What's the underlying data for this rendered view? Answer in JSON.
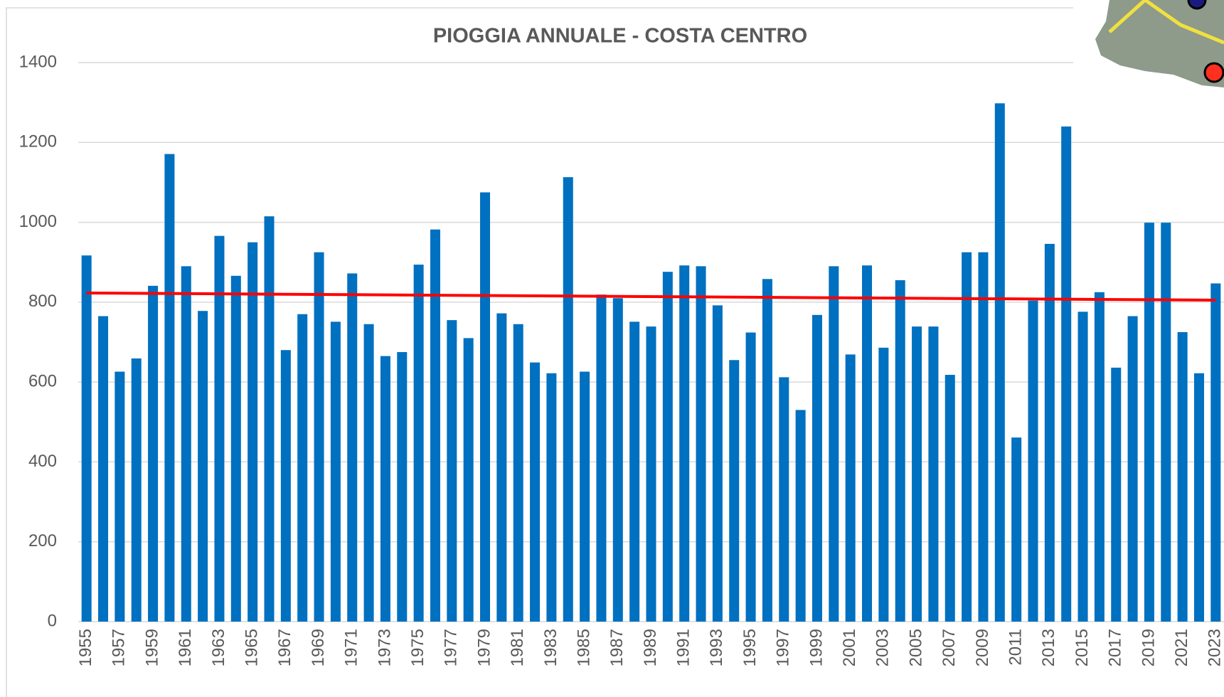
{
  "chart_data": {
    "type": "bar",
    "title": "PIOGGIA ANNUALE - COSTA CENTRO",
    "categories": [
      "1955",
      null,
      "1957",
      null,
      "1959",
      null,
      "1961",
      null,
      "1963",
      null,
      "1965",
      null,
      "1967",
      null,
      "1969",
      null,
      "1971",
      null,
      "1973",
      null,
      "1975",
      null,
      "1977",
      null,
      "1979",
      null,
      "1981",
      null,
      "1983",
      null,
      "1985",
      null,
      "1987",
      null,
      "1989",
      null,
      "1991",
      null,
      "1993",
      null,
      "1995",
      null,
      "1997",
      null,
      "1999",
      null,
      "2001",
      null,
      "2003",
      null,
      "2005",
      null,
      "2007",
      null,
      "2009",
      null,
      "2011",
      null,
      "2013",
      null,
      "2015",
      null,
      "2017",
      null,
      "2019",
      null,
      "2021",
      null,
      "2023"
    ],
    "values": [
      917,
      765,
      626,
      659,
      841,
      1171,
      890,
      778,
      966,
      866,
      950,
      1015,
      680,
      770,
      925,
      751,
      872,
      745,
      665,
      675,
      894,
      982,
      755,
      710,
      1075,
      772,
      745,
      649,
      622,
      1113,
      626,
      819,
      810,
      751,
      739,
      876,
      892,
      890,
      792,
      655,
      724,
      858,
      612,
      530,
      768,
      890,
      669,
      892,
      686,
      855,
      739,
      739,
      618,
      925,
      925,
      1298,
      461,
      804,
      946,
      1240,
      776,
      825,
      636,
      765,
      999,
      999,
      725,
      622,
      847
    ],
    "color": "#0070c0",
    "trend": {
      "color": "#ff0000",
      "values": [
        823,
        805
      ]
    },
    "ylim": [
      0,
      1400
    ],
    "yticks": [
      0,
      200,
      400,
      600,
      800,
      1000,
      1200,
      1400
    ],
    "grid": true
  }
}
